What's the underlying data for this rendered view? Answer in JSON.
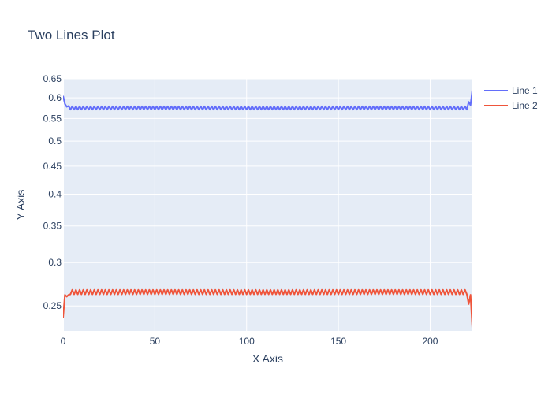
{
  "chart_data": {
    "type": "line",
    "title": "Two Lines Plot",
    "xlabel": "X Axis",
    "ylabel": "Y Axis",
    "y_scale": "log",
    "xlim": [
      0,
      223
    ],
    "ylim": [
      0.225,
      0.65
    ],
    "x_ticks": [
      0,
      50,
      100,
      150,
      200
    ],
    "y_ticks": [
      0.25,
      0.3,
      0.35,
      0.4,
      0.45,
      0.5,
      0.55,
      0.6,
      0.65
    ],
    "y_tick_labels": [
      "0.25",
      "0.3",
      "0.35",
      "0.4",
      "0.45",
      "0.5",
      "0.55",
      "0.6",
      "0.65"
    ],
    "grid": true,
    "legend_position": "top-right",
    "plot_background": "#e5ecf6",
    "series": [
      {
        "name": "Line 1",
        "color": "#636efa",
        "x_start": 0,
        "x_step": 1,
        "head": [
          0.605,
          0.585,
          0.578,
          0.58
        ],
        "pattern": [
          0.571,
          0.579
        ],
        "pattern_until_x": 219,
        "tail": [
          0.571,
          0.59,
          0.582,
          0.62
        ]
      },
      {
        "name": "Line 2",
        "color": "#ef553b",
        "x_start": 0,
        "x_step": 1,
        "head": [
          0.238,
          0.262,
          0.26,
          0.262
        ],
        "pattern": [
          0.2625,
          0.2675
        ],
        "pattern_until_x": 219,
        "tail": [
          0.2625,
          0.252,
          0.262,
          0.228
        ]
      }
    ]
  }
}
